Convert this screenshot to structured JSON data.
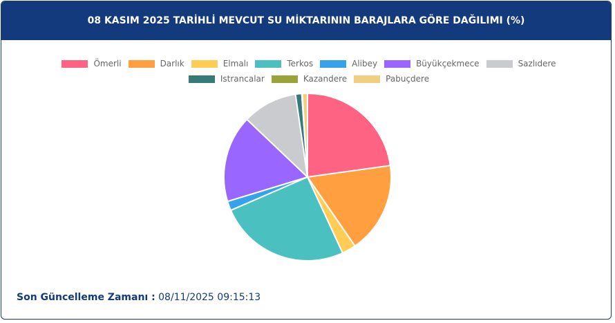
{
  "chart_data": {
    "type": "pie",
    "title": "08 KASIM 2025 TARİHLİ MEVCUT SU MİKTARININ BARAJLARA GÖRE DAĞILIMI (%)",
    "categories": [
      "Ömerli",
      "Darlık",
      "Elmalı",
      "Terkos",
      "Alibey",
      "Büyükçekmece",
      "Sazlıdere",
      "Istrancalar",
      "Kazandere",
      "Pabuçdere"
    ],
    "values": [
      22.8,
      17.6,
      2.7,
      25.4,
      1.8,
      16.8,
      10.6,
      1.2,
      0.1,
      1.0
    ],
    "colors": [
      "#ff6384",
      "#ff9f40",
      "#ffcd56",
      "#4bc0c0",
      "#36a2eb",
      "#9966ff",
      "#c9cbcf",
      "#367a7a",
      "#9aa33a",
      "#f0d080"
    ],
    "legend_position": "top"
  },
  "footer": {
    "label": "Son Güncelleme Zamanı :",
    "value": "08/11/2025 09:15:13"
  }
}
